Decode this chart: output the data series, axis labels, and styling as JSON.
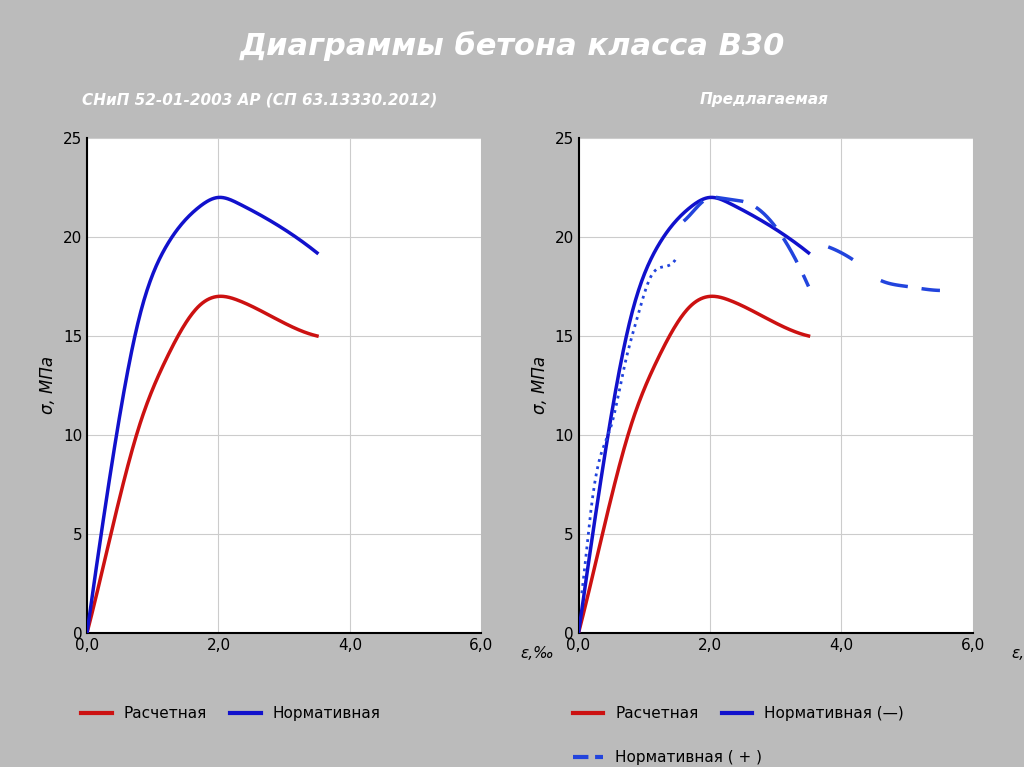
{
  "title": "Диаграммы бетона класса В30",
  "title_bg": "#2233BB",
  "left_header": "СНиП 52-01-2003 АР (СП 63.13330.2012)",
  "left_header_bg": "#4477CC",
  "right_header": "Предлагаемая",
  "right_header_bg": "#2233BB",
  "colors": {
    "red": "#CC1111",
    "blue": "#1111CC",
    "blue_dot": "#2244DD",
    "white": "#FFFFFF",
    "grid": "#CCCCCC",
    "bg_texture": "#BBBBBB",
    "panel_white": "#FFFFFF"
  },
  "left_red": {
    "x": [
      0,
      0.15,
      0.4,
      0.8,
      1.2,
      1.7,
      2.0,
      2.3,
      2.8,
      3.5
    ],
    "y": [
      0,
      2.0,
      5.5,
      10.5,
      13.8,
      16.5,
      17.0,
      16.8,
      16.0,
      15.0
    ]
  },
  "left_blue": {
    "x": [
      0,
      0.15,
      0.4,
      0.8,
      1.2,
      1.7,
      2.0,
      2.3,
      2.8,
      3.5
    ],
    "y": [
      0,
      3.5,
      9.0,
      16.0,
      19.5,
      21.5,
      22.0,
      21.7,
      20.8,
      19.2
    ]
  },
  "right_red": {
    "x": [
      0,
      0.15,
      0.4,
      0.8,
      1.2,
      1.7,
      2.0,
      2.3,
      2.8,
      3.5
    ],
    "y": [
      0,
      2.0,
      5.5,
      10.5,
      13.8,
      16.5,
      17.0,
      16.8,
      16.0,
      15.0
    ]
  },
  "right_blue_solid": {
    "x": [
      0,
      0.15,
      0.4,
      0.8,
      1.2,
      1.7,
      2.0,
      2.3,
      2.8,
      3.5
    ],
    "y": [
      0,
      3.5,
      9.0,
      16.0,
      19.5,
      21.5,
      22.0,
      21.7,
      20.8,
      19.2
    ]
  },
  "right_blue_plus_dots": {
    "x": [
      0.05,
      0.1,
      0.2,
      0.3,
      0.5,
      0.7,
      0.9,
      1.1,
      1.3,
      1.5
    ],
    "y": [
      2.0,
      3.5,
      6.5,
      8.5,
      10.5,
      13.5,
      16.0,
      18.0,
      18.5,
      19.0
    ]
  },
  "right_blue_plus_dash1": {
    "x": [
      1.6,
      1.8,
      2.0,
      2.1,
      2.3,
      2.5,
      2.7,
      3.0,
      3.5
    ],
    "y": [
      20.8,
      21.5,
      22.0,
      22.0,
      21.9,
      21.8,
      21.5,
      20.5,
      17.5
    ]
  },
  "right_blue_plus_dash2": {
    "x": [
      3.8,
      4.0,
      4.2
    ],
    "y": [
      19.5,
      19.2,
      18.8
    ]
  },
  "right_blue_plus_dash3": {
    "x": [
      4.6,
      4.8,
      5.0,
      5.2,
      5.5
    ],
    "y": [
      17.8,
      17.6,
      17.5,
      17.4,
      17.3
    ]
  },
  "legend_left": [
    {
      "label": "Расчетная",
      "color": "#CC1111"
    },
    {
      "label": "Нормативная",
      "color": "#1111CC"
    }
  ],
  "legend_right_row1": [
    {
      "label": "Расчетная",
      "color": "#CC1111",
      "ls": "solid"
    },
    {
      "label": "Нормативная (—)",
      "color": "#1111CC",
      "ls": "solid"
    }
  ],
  "legend_right_row2": [
    {
      "label": "Нормативная ( + )",
      "color": "#2244DD",
      "ls": "dashed"
    }
  ]
}
